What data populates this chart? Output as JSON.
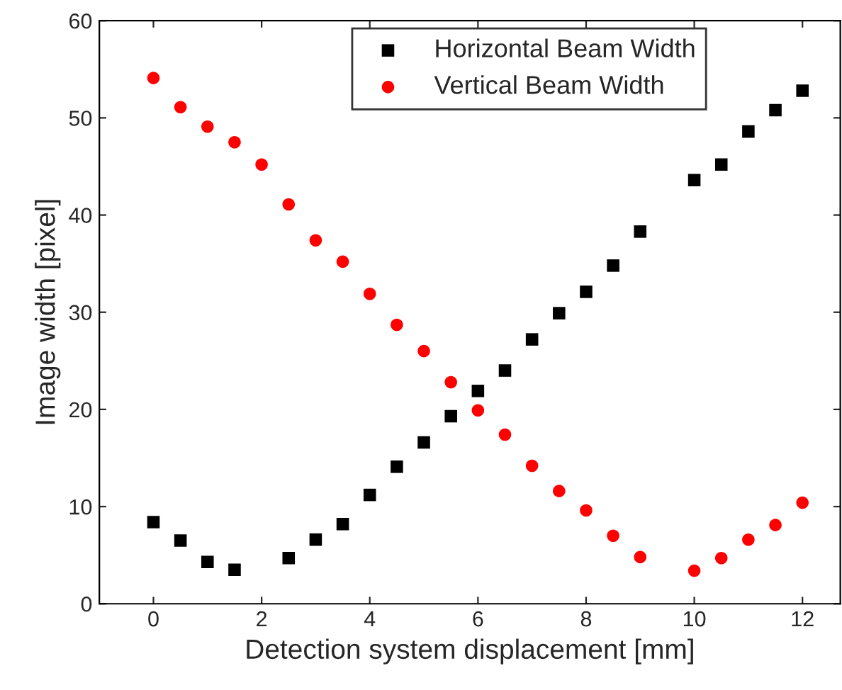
{
  "chart_data": {
    "type": "scatter",
    "xlabel": "Detection system displacement [mm]",
    "ylabel": "Image width [pixel]",
    "xlim": [
      -1,
      12.7
    ],
    "ylim": [
      0,
      60
    ],
    "xticks": [
      0,
      2,
      4,
      6,
      8,
      10,
      12
    ],
    "yticks": [
      0,
      10,
      20,
      30,
      40,
      50,
      60
    ],
    "grid": false,
    "legend": "top",
    "series": [
      {
        "name": "Horizontal Beam Width",
        "color": "#000000",
        "marker": "square",
        "x": [
          0,
          0.5,
          1,
          1.5,
          2.5,
          3,
          3.5,
          4,
          4.5,
          5,
          5.5,
          6,
          6.5,
          7,
          7.5,
          8,
          8.5,
          9,
          10,
          10.5,
          11,
          11.5,
          12
        ],
        "values": [
          8.4,
          6.5,
          4.3,
          3.5,
          4.7,
          6.6,
          8.2,
          11.2,
          14.1,
          16.6,
          19.3,
          21.9,
          24.0,
          27.2,
          29.9,
          32.1,
          34.8,
          38.3,
          43.6,
          45.2,
          48.6,
          50.8,
          52.8
        ]
      },
      {
        "name": "Vertical Beam Width",
        "color": "#ff0000",
        "marker": "circle",
        "x": [
          0,
          0.5,
          1,
          1.5,
          2,
          2.5,
          3,
          3.5,
          4,
          4.5,
          5,
          5.5,
          6,
          6.5,
          7,
          7.5,
          8,
          8.5,
          9,
          10,
          10.5,
          11,
          11.5,
          12
        ],
        "values": [
          54.1,
          51.1,
          49.1,
          47.5,
          45.2,
          41.1,
          37.4,
          35.2,
          31.9,
          28.7,
          26.0,
          22.8,
          19.9,
          17.4,
          14.2,
          11.6,
          9.6,
          7.0,
          4.8,
          3.4,
          4.7,
          6.6,
          8.1,
          10.4
        ]
      }
    ]
  }
}
